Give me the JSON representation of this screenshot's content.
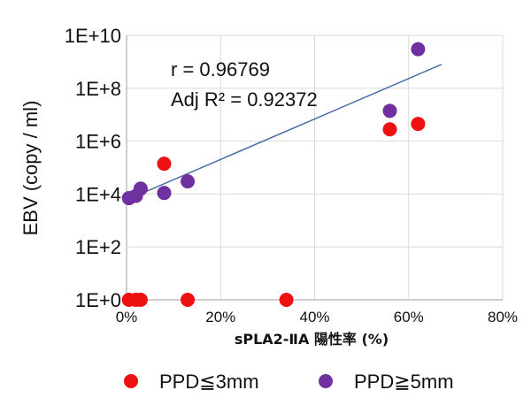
{
  "chart_data": {
    "type": "scatter",
    "xlabel": "sPLA2-ⅡA 陽性率 (%)",
    "ylabel": "EBV (copy / ml)",
    "x_scale": "linear",
    "y_scale": "log",
    "xlim": [
      0,
      80
    ],
    "ylim": [
      1,
      10000000000
    ],
    "x_tick_labels": [
      "0%",
      "20%",
      "40%",
      "60%",
      "80%"
    ],
    "y_tick_labels": [
      "1E+0",
      "1E+2",
      "1E+4",
      "1E+6",
      "1E+8",
      "1E+10"
    ],
    "grid": true,
    "legend_position": "bottom",
    "annotations": [
      "r = 0.96769",
      "Adj R² = 0.92372"
    ],
    "series": [
      {
        "name": "PPD≦3mm",
        "color": "#ee1111",
        "points": [
          {
            "x": 0.5,
            "y": 1
          },
          {
            "x": 2,
            "y": 1
          },
          {
            "x": 3,
            "y": 1
          },
          {
            "x": 13,
            "y": 1
          },
          {
            "x": 34,
            "y": 1
          },
          {
            "x": 8,
            "y": 140000
          },
          {
            "x": 56,
            "y": 2800000
          },
          {
            "x": 62,
            "y": 4500000
          }
        ]
      },
      {
        "name": "PPD≧5mm",
        "color": "#7030a0",
        "points": [
          {
            "x": 0.5,
            "y": 7000
          },
          {
            "x": 2,
            "y": 8500
          },
          {
            "x": 3,
            "y": 16000
          },
          {
            "x": 8,
            "y": 11000
          },
          {
            "x": 13,
            "y": 30000
          },
          {
            "x": 56,
            "y": 14000000
          },
          {
            "x": 62,
            "y": 3000000000
          }
        ]
      }
    ],
    "trendline": {
      "color": "#4a6fa5",
      "points": [
        {
          "x": 0,
          "y": 6000
        },
        {
          "x": 67,
          "y": 800000000
        }
      ]
    }
  }
}
